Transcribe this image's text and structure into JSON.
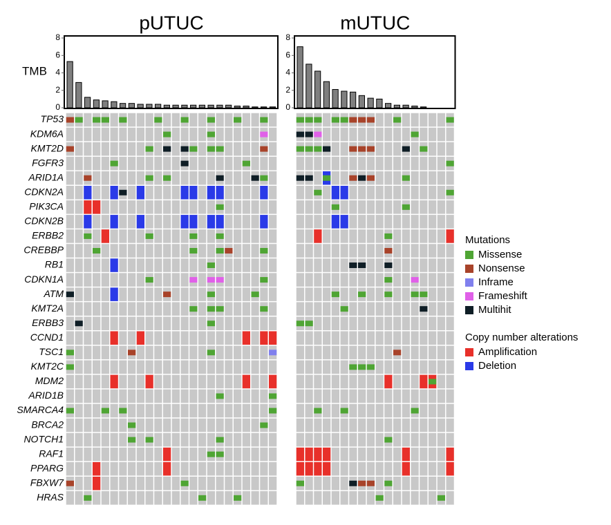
{
  "chart_data": {
    "type": "oncoprint",
    "tmb_label": "TMB",
    "tmb_ylim": [
      0,
      8
    ],
    "tmb_yticks": [
      0,
      2,
      4,
      6,
      8
    ],
    "cell_color": "#c8c8c8",
    "genes": [
      "TP53",
      "KDM6A",
      "KMT2D",
      "FGFR3",
      "ARID1A",
      "CDKN2A",
      "PIK3CA",
      "CDKN2B",
      "ERBB2",
      "CREBBP",
      "RB1",
      "CDKN1A",
      "ATM",
      "KMT2A",
      "ERBB3",
      "CCND1",
      "TSC1",
      "KMT2C",
      "MDM2",
      "ARID1B",
      "SMARCA4",
      "BRCA2",
      "NOTCH1",
      "RAF1",
      "PPARG",
      "FBXW7",
      "HRAS"
    ],
    "legend": [
      {
        "title": "Mutations",
        "items": [
          {
            "name": "Missense",
            "color": "#4fa534"
          },
          {
            "name": "Nonsense",
            "color": "#a8432a"
          },
          {
            "name": "Inframe",
            "color": "#8080ee"
          },
          {
            "name": "Frameshift",
            "color": "#e060e8"
          },
          {
            "name": "Multihit",
            "color": "#0f1e26"
          }
        ]
      },
      {
        "title": "Copy number alterations",
        "items": [
          {
            "name": "Amplification",
            "color": "#e8302a"
          },
          {
            "name": "Deletion",
            "color": "#2a3ae8"
          }
        ]
      }
    ],
    "panels": [
      {
        "title": "pUTUC",
        "samples": 24,
        "bar_color": "#7f7f7f",
        "tmb": [
          5.3,
          2.9,
          1.2,
          0.9,
          0.8,
          0.7,
          0.5,
          0.5,
          0.4,
          0.4,
          0.4,
          0.3,
          0.3,
          0.3,
          0.3,
          0.3,
          0.3,
          0.3,
          0.3,
          0.2,
          0.2,
          0.1,
          0.1,
          0.1
        ],
        "alterations": [
          [
            0,
            0,
            0,
            1
          ],
          [
            0,
            1,
            0,
            0
          ],
          [
            0,
            3,
            0,
            0
          ],
          [
            0,
            4,
            0,
            0
          ],
          [
            0,
            6,
            0,
            0
          ],
          [
            0,
            10,
            0,
            0
          ],
          [
            0,
            13,
            0,
            0
          ],
          [
            0,
            16,
            0,
            0
          ],
          [
            0,
            19,
            0,
            0
          ],
          [
            0,
            22,
            0,
            0
          ],
          [
            1,
            11,
            0,
            0
          ],
          [
            1,
            16,
            0,
            0
          ],
          [
            1,
            22,
            0,
            3
          ],
          [
            2,
            0,
            0,
            1
          ],
          [
            2,
            9,
            0,
            0
          ],
          [
            2,
            11,
            0,
            4
          ],
          [
            2,
            13,
            0,
            4
          ],
          [
            2,
            14,
            0,
            0
          ],
          [
            2,
            16,
            0,
            0
          ],
          [
            2,
            17,
            0,
            0
          ],
          [
            2,
            22,
            0,
            1
          ],
          [
            3,
            5,
            0,
            0
          ],
          [
            3,
            13,
            0,
            4
          ],
          [
            3,
            20,
            0,
            0
          ],
          [
            4,
            2,
            0,
            1
          ],
          [
            4,
            9,
            0,
            0
          ],
          [
            4,
            11,
            0,
            0
          ],
          [
            4,
            17,
            0,
            4
          ],
          [
            4,
            21,
            0,
            4
          ],
          [
            4,
            22,
            0,
            0
          ],
          [
            5,
            2,
            1,
            1
          ],
          [
            5,
            5,
            1,
            1
          ],
          [
            5,
            6,
            0,
            4
          ],
          [
            5,
            8,
            1,
            1
          ],
          [
            5,
            13,
            1,
            1
          ],
          [
            5,
            14,
            1,
            1
          ],
          [
            5,
            16,
            1,
            1
          ],
          [
            5,
            17,
            1,
            1
          ],
          [
            5,
            22,
            1,
            1
          ],
          [
            6,
            2,
            1,
            0
          ],
          [
            6,
            3,
            1,
            0
          ],
          [
            6,
            17,
            0,
            0
          ],
          [
            7,
            2,
            1,
            1
          ],
          [
            7,
            5,
            1,
            1
          ],
          [
            7,
            8,
            1,
            1
          ],
          [
            7,
            13,
            1,
            1
          ],
          [
            7,
            14,
            1,
            1
          ],
          [
            7,
            16,
            1,
            1
          ],
          [
            7,
            17,
            1,
            1
          ],
          [
            7,
            22,
            1,
            1
          ],
          [
            8,
            2,
            0,
            0
          ],
          [
            8,
            4,
            1,
            0
          ],
          [
            8,
            9,
            0,
            0
          ],
          [
            8,
            14,
            0,
            0
          ],
          [
            8,
            17,
            0,
            0
          ],
          [
            9,
            3,
            0,
            0
          ],
          [
            9,
            14,
            0,
            0
          ],
          [
            9,
            17,
            0,
            0
          ],
          [
            9,
            18,
            0,
            1
          ],
          [
            9,
            22,
            0,
            0
          ],
          [
            10,
            5,
            1,
            1
          ],
          [
            10,
            16,
            0,
            0
          ],
          [
            11,
            9,
            0,
            0
          ],
          [
            11,
            14,
            0,
            3
          ],
          [
            11,
            16,
            0,
            3
          ],
          [
            11,
            17,
            0,
            3
          ],
          [
            11,
            22,
            0,
            0
          ],
          [
            12,
            0,
            0,
            4
          ],
          [
            12,
            5,
            1,
            1
          ],
          [
            12,
            11,
            0,
            1
          ],
          [
            12,
            16,
            0,
            0
          ],
          [
            12,
            21,
            0,
            0
          ],
          [
            13,
            14,
            0,
            0
          ],
          [
            13,
            16,
            0,
            0
          ],
          [
            13,
            17,
            0,
            0
          ],
          [
            13,
            22,
            0,
            0
          ],
          [
            14,
            1,
            0,
            4
          ],
          [
            14,
            16,
            0,
            0
          ],
          [
            15,
            5,
            1,
            0
          ],
          [
            15,
            8,
            1,
            0
          ],
          [
            15,
            20,
            1,
            0
          ],
          [
            15,
            22,
            1,
            0
          ],
          [
            15,
            23,
            1,
            0
          ],
          [
            16,
            0,
            0,
            0
          ],
          [
            16,
            7,
            0,
            1
          ],
          [
            16,
            16,
            0,
            0
          ],
          [
            16,
            23,
            0,
            2
          ],
          [
            17,
            0,
            0,
            0
          ],
          [
            18,
            5,
            1,
            0
          ],
          [
            18,
            9,
            1,
            0
          ],
          [
            18,
            20,
            1,
            0
          ],
          [
            18,
            23,
            1,
            0
          ],
          [
            19,
            17,
            0,
            0
          ],
          [
            19,
            23,
            0,
            0
          ],
          [
            20,
            0,
            0,
            0
          ],
          [
            20,
            4,
            0,
            0
          ],
          [
            20,
            6,
            0,
            0
          ],
          [
            20,
            23,
            0,
            0
          ],
          [
            21,
            7,
            0,
            0
          ],
          [
            21,
            22,
            0,
            0
          ],
          [
            22,
            7,
            0,
            0
          ],
          [
            22,
            9,
            0,
            0
          ],
          [
            22,
            17,
            0,
            0
          ],
          [
            23,
            11,
            1,
            0
          ],
          [
            23,
            16,
            0,
            0
          ],
          [
            23,
            17,
            0,
            0
          ],
          [
            24,
            3,
            1,
            0
          ],
          [
            24,
            11,
            1,
            0
          ],
          [
            25,
            0,
            0,
            1
          ],
          [
            25,
            3,
            1,
            0
          ],
          [
            25,
            13,
            0,
            0
          ],
          [
            26,
            2,
            0,
            0
          ],
          [
            26,
            15,
            0,
            0
          ],
          [
            26,
            19,
            0,
            0
          ]
        ]
      },
      {
        "title": "mUTUC",
        "samples": 18,
        "bar_color": "#7f7f7f",
        "tmb": [
          7,
          5,
          4.2,
          3,
          2.1,
          1.9,
          1.8,
          1.4,
          1.1,
          1.0,
          0.5,
          0.3,
          0.3,
          0.2,
          0.1,
          0,
          0,
          0
        ],
        "alterations": [
          [
            0,
            0,
            0,
            0
          ],
          [
            0,
            1,
            0,
            0
          ],
          [
            0,
            2,
            0,
            0
          ],
          [
            0,
            4,
            0,
            0
          ],
          [
            0,
            5,
            0,
            0
          ],
          [
            0,
            6,
            0,
            1
          ],
          [
            0,
            7,
            0,
            1
          ],
          [
            0,
            8,
            0,
            1
          ],
          [
            0,
            11,
            0,
            0
          ],
          [
            0,
            17,
            0,
            0
          ],
          [
            1,
            0,
            0,
            4
          ],
          [
            1,
            1,
            0,
            4
          ],
          [
            1,
            2,
            0,
            3
          ],
          [
            1,
            13,
            0,
            0
          ],
          [
            2,
            0,
            0,
            0
          ],
          [
            2,
            1,
            0,
            0
          ],
          [
            2,
            2,
            0,
            0
          ],
          [
            2,
            3,
            0,
            4
          ],
          [
            2,
            6,
            0,
            1
          ],
          [
            2,
            7,
            0,
            1
          ],
          [
            2,
            8,
            0,
            1
          ],
          [
            2,
            12,
            0,
            4
          ],
          [
            2,
            14,
            0,
            0
          ],
          [
            3,
            17,
            0,
            0
          ],
          [
            4,
            0,
            0,
            4
          ],
          [
            4,
            1,
            0,
            4
          ],
          [
            4,
            3,
            1,
            1
          ],
          [
            4,
            3,
            0,
            0
          ],
          [
            4,
            6,
            0,
            1
          ],
          [
            4,
            7,
            0,
            4
          ],
          [
            4,
            8,
            0,
            1
          ],
          [
            4,
            12,
            0,
            0
          ],
          [
            5,
            2,
            0,
            0
          ],
          [
            5,
            4,
            1,
            1
          ],
          [
            5,
            5,
            1,
            1
          ],
          [
            5,
            17,
            0,
            0
          ],
          [
            6,
            4,
            0,
            0
          ],
          [
            6,
            12,
            0,
            0
          ],
          [
            7,
            4,
            1,
            1
          ],
          [
            7,
            5,
            1,
            1
          ],
          [
            8,
            2,
            1,
            0
          ],
          [
            8,
            10,
            0,
            0
          ],
          [
            8,
            17,
            1,
            0
          ],
          [
            9,
            10,
            0,
            1
          ],
          [
            10,
            6,
            0,
            4
          ],
          [
            10,
            7,
            0,
            4
          ],
          [
            10,
            10,
            0,
            4
          ],
          [
            11,
            10,
            0,
            0
          ],
          [
            11,
            13,
            0,
            3
          ],
          [
            12,
            4,
            0,
            0
          ],
          [
            12,
            7,
            0,
            0
          ],
          [
            12,
            10,
            0,
            0
          ],
          [
            12,
            13,
            0,
            0
          ],
          [
            12,
            14,
            0,
            0
          ],
          [
            13,
            5,
            0,
            0
          ],
          [
            13,
            14,
            0,
            4
          ],
          [
            14,
            0,
            0,
            0
          ],
          [
            14,
            1,
            0,
            0
          ],
          [
            16,
            11,
            0,
            1
          ],
          [
            17,
            6,
            0,
            0
          ],
          [
            17,
            7,
            0,
            0
          ],
          [
            17,
            8,
            0,
            0
          ],
          [
            18,
            10,
            1,
            0
          ],
          [
            18,
            14,
            1,
            0
          ],
          [
            18,
            15,
            1,
            0
          ],
          [
            18,
            15,
            0,
            0
          ],
          [
            20,
            2,
            0,
            0
          ],
          [
            20,
            5,
            0,
            0
          ],
          [
            20,
            13,
            0,
            0
          ],
          [
            22,
            10,
            0,
            0
          ],
          [
            23,
            0,
            1,
            0
          ],
          [
            23,
            1,
            1,
            0
          ],
          [
            23,
            2,
            1,
            0
          ],
          [
            23,
            3,
            1,
            0
          ],
          [
            23,
            12,
            1,
            0
          ],
          [
            23,
            17,
            1,
            0
          ],
          [
            24,
            0,
            1,
            0
          ],
          [
            24,
            1,
            1,
            0
          ],
          [
            24,
            2,
            1,
            0
          ],
          [
            24,
            3,
            1,
            0
          ],
          [
            24,
            12,
            1,
            0
          ],
          [
            24,
            17,
            1,
            0
          ],
          [
            25,
            0,
            0,
            0
          ],
          [
            25,
            6,
            0,
            4
          ],
          [
            25,
            7,
            0,
            1
          ],
          [
            25,
            8,
            0,
            1
          ],
          [
            25,
            10,
            0,
            0
          ],
          [
            26,
            9,
            0,
            0
          ],
          [
            26,
            16,
            0,
            0
          ]
        ]
      }
    ]
  }
}
